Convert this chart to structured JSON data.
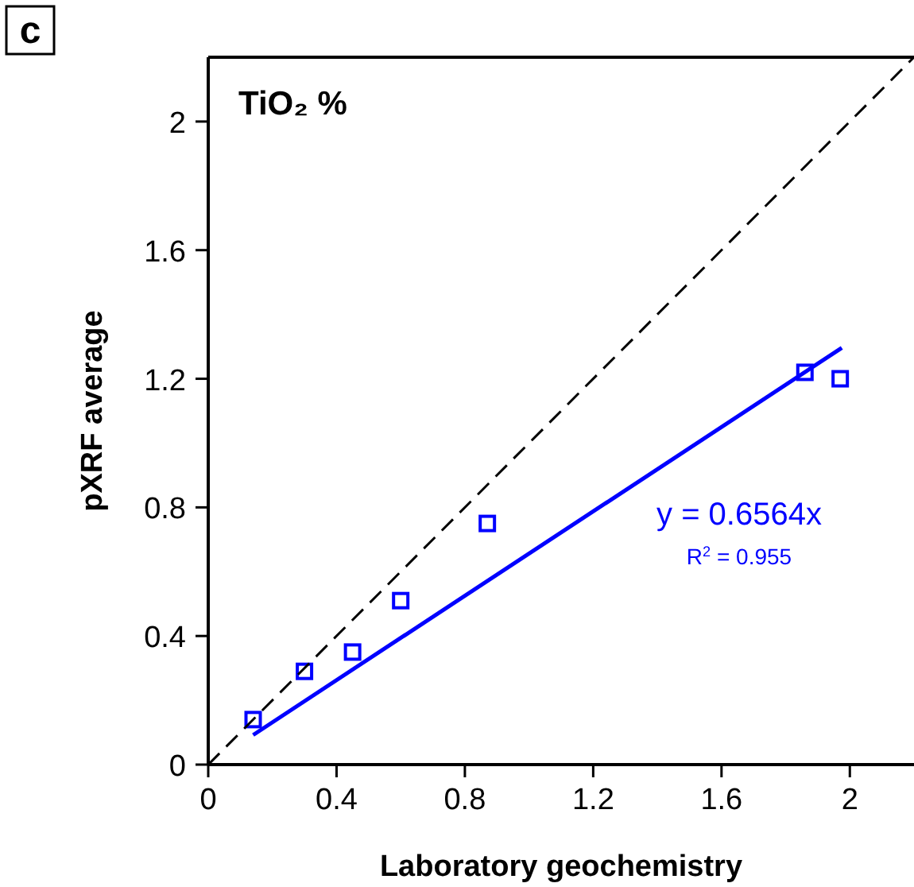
{
  "chart_data": {
    "type": "scatter",
    "title": "TiO₂ %",
    "xlabel": "Laboratory geochemistry",
    "ylabel": "pXRF average",
    "xlim": [
      0,
      2.2
    ],
    "ylim": [
      0,
      2.2
    ],
    "xticks": [
      0,
      0.4,
      0.8,
      1.2,
      1.6,
      2
    ],
    "yticks": [
      0,
      0.4,
      0.8,
      1.2,
      1.6,
      2
    ],
    "grid": false,
    "marker": "square",
    "series": [
      {
        "color": "#0000ff",
        "x": [
          0.14,
          0.3,
          0.45,
          0.6,
          0.87,
          1.86,
          1.97
        ],
        "values": [
          0.14,
          0.29,
          0.35,
          0.51,
          0.75,
          1.22,
          1.2
        ]
      },
      {
        "type": "line",
        "color": "#0000ff",
        "line_style": "solid",
        "marker": "none",
        "x": [
          0.14,
          1.975
        ],
        "values": [
          0.092,
          1.296
        ]
      },
      {
        "type": "line",
        "color": "#000000",
        "line_style": "dashed",
        "marker": "none",
        "x": [
          0,
          2.2
        ],
        "values": [
          0,
          2.2
        ]
      }
    ],
    "annotations": [
      "c",
      "y = 0.6564x",
      "R$^{2}$ = 0.955"
    ]
  }
}
